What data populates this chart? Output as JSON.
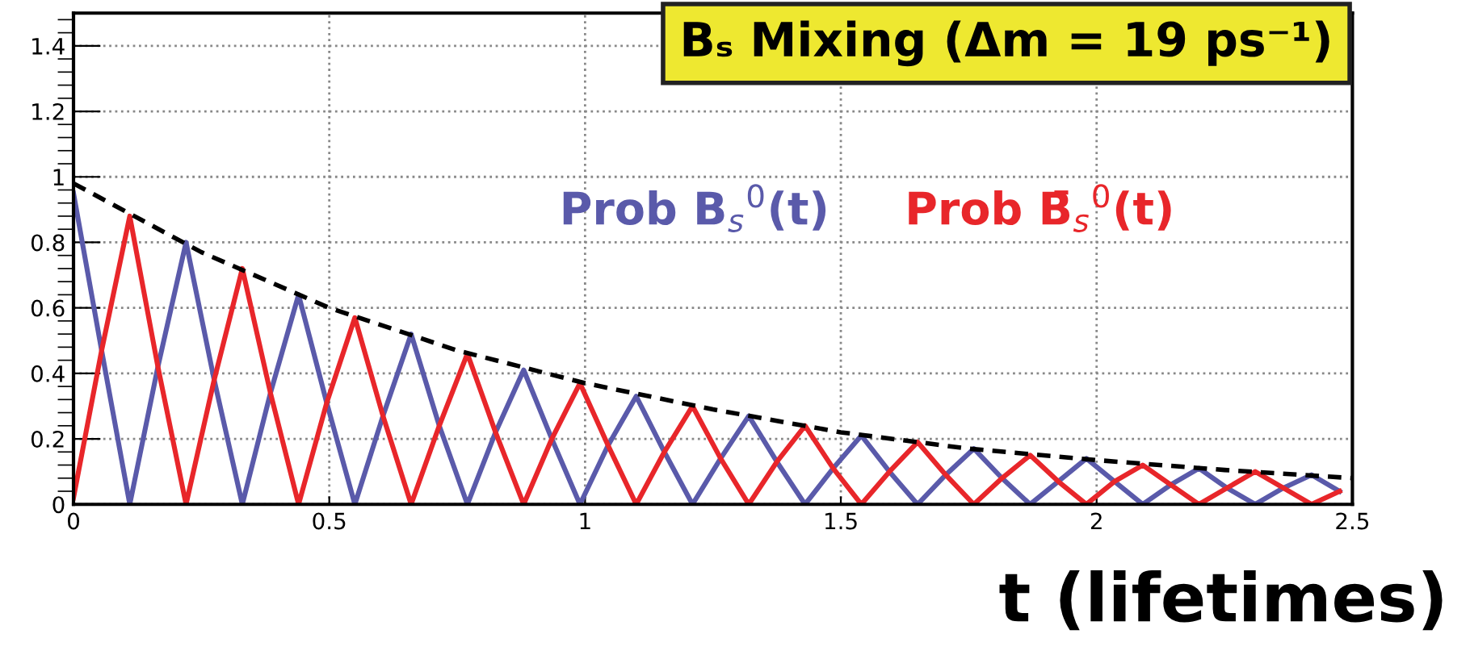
{
  "chart_data": {
    "type": "line",
    "title": "Bₛ Mixing (Δm = 19 ps⁻¹)",
    "xlabel": "t (lifetimes)",
    "x": [
      0,
      0.055,
      0.11,
      0.165,
      0.22,
      0.275,
      0.33,
      0.385,
      0.44,
      0.495,
      0.55,
      0.605,
      0.66,
      0.715,
      0.77,
      0.825,
      0.88,
      0.935,
      0.99,
      1.045,
      1.1,
      1.155,
      1.21,
      1.265,
      1.32,
      1.375,
      1.43,
      1.485,
      1.54,
      1.595,
      1.65,
      1.705,
      1.76,
      1.815,
      1.87,
      1.925,
      1.98,
      2.035,
      2.09,
      2.145,
      2.2,
      2.255,
      2.31,
      2.365,
      2.42,
      2.475
    ],
    "series": [
      {
        "name": "Prob B$_{s}$$^{0}$(t)",
        "color": "#5a5aaa",
        "values": [
          0.95,
          0.47,
          0,
          0.42,
          0.8,
          0.38,
          0,
          0.34,
          0.64,
          0.31,
          0,
          0.27,
          0.52,
          0.24,
          0,
          0.22,
          0.41,
          0.2,
          0,
          0.18,
          0.33,
          0.16,
          0,
          0.14,
          0.27,
          0.13,
          0,
          0.11,
          0.21,
          0.1,
          0,
          0.09,
          0.17,
          0.08,
          0,
          0.07,
          0.14,
          0.07,
          0,
          0.06,
          0.11,
          0.05,
          0,
          0.05,
          0.09,
          0.04
        ]
      },
      {
        "name": "Prob B̄$_{s}$$^{0}$(t)",
        "color": "#e8262a",
        "values": [
          0.02,
          0.47,
          0.88,
          0.42,
          0,
          0.38,
          0.72,
          0.34,
          0,
          0.31,
          0.57,
          0.27,
          0,
          0.24,
          0.46,
          0.22,
          0,
          0.2,
          0.37,
          0.18,
          0,
          0.16,
          0.3,
          0.14,
          0,
          0.13,
          0.24,
          0.11,
          0,
          0.1,
          0.19,
          0.09,
          0,
          0.08,
          0.15,
          0.07,
          0,
          0.07,
          0.12,
          0.06,
          0,
          0.05,
          0.1,
          0.05,
          0,
          0.04
        ]
      },
      {
        "color": "#000000",
        "line_style": "dashed",
        "x": [
          0,
          0.25,
          0.5,
          0.75,
          1,
          1.25,
          1.5,
          1.75,
          2,
          2.25,
          2.5
        ],
        "values": [
          0.98,
          0.77,
          0.6,
          0.47,
          0.37,
          0.29,
          0.22,
          0.17,
          0.135,
          0.105,
          0.08
        ]
      }
    ],
    "xlim": [
      0,
      2.5
    ],
    "xticks": [
      0,
      0.5,
      1,
      1.5,
      2,
      2.5
    ],
    "ylim": [
      0,
      1.5
    ],
    "yticks": [
      0,
      0.2,
      0.4,
      0.6,
      0.8,
      1,
      1.2,
      1.4
    ],
    "grid": true,
    "legend": false,
    "marker": "none",
    "line_style": "solid"
  }
}
